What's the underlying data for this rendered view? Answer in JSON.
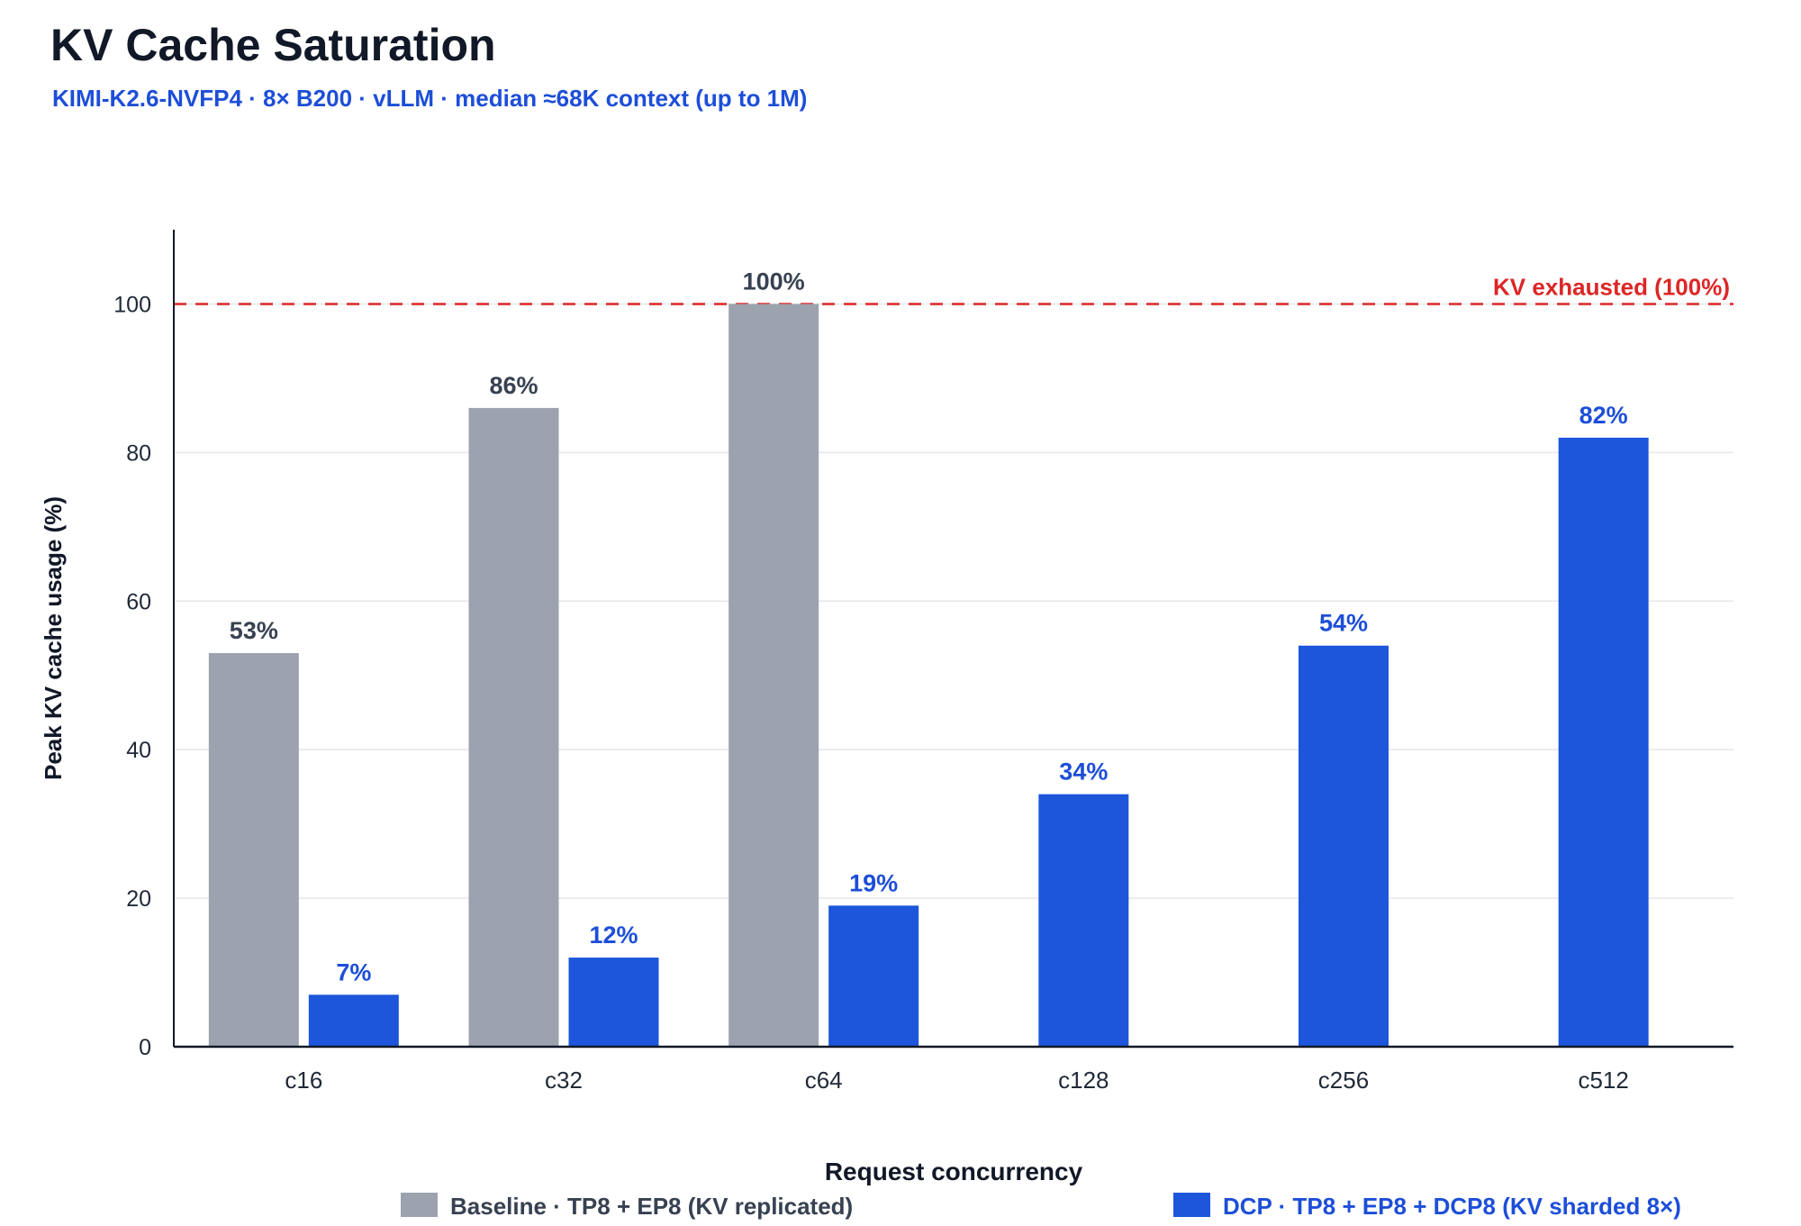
{
  "chart_data": {
    "type": "bar",
    "title": "KV Cache Saturation",
    "subtitle": "KIMI-K2.6-NVFP4 · 8× B200 · vLLM · median ≈68K context (up to 1M)",
    "xlabel": "Request concurrency",
    "ylabel": "Peak KV cache usage (%)",
    "ylim": [
      0,
      110
    ],
    "yticks": [
      0,
      20,
      40,
      60,
      80,
      100
    ],
    "grid": true,
    "categories": [
      "c16",
      "c32",
      "c64",
      "c128",
      "c256",
      "c512"
    ],
    "series": [
      {
        "name": "Baseline · TP8 + EP8 (KV replicated)",
        "color": "#9ca3af",
        "label_color": "#374151",
        "values": [
          53,
          86,
          100,
          null,
          null,
          null
        ],
        "labels": [
          "53%",
          "86%",
          "100%",
          "",
          "",
          ""
        ]
      },
      {
        "name": "DCP · TP8 + EP8 + DCP8 (KV sharded 8×)",
        "color": "#1d56db",
        "label_color": "#1d4ed8",
        "values": [
          7,
          12,
          19,
          34,
          54,
          82
        ],
        "labels": [
          "7%",
          "12%",
          "19%",
          "34%",
          "54%",
          "82%"
        ]
      }
    ],
    "reference_line": {
      "value": 100,
      "label": "KV exhausted (100%)",
      "color": "#dc2626"
    },
    "legend_placement": "bottom"
  }
}
